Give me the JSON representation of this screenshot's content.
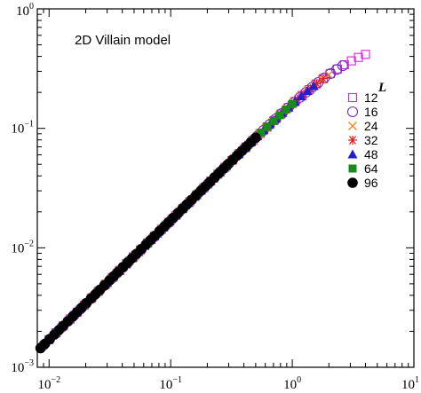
{
  "chart_data": {
    "type": "scatter",
    "title": "2D Villain model",
    "xlabel": "",
    "ylabel": "",
    "xscale": "log",
    "yscale": "log",
    "xlim": [
      0.008,
      10
    ],
    "ylim": [
      0.001,
      1
    ],
    "grid": false,
    "legend_position": "right",
    "legend_title": "L",
    "x_ticks": [
      {
        "mantissa": "10",
        "exp": "−2",
        "value": 0.01
      },
      {
        "mantissa": "10",
        "exp": "−1",
        "value": 0.1
      },
      {
        "mantissa": "10",
        "exp": "0",
        "value": 1
      },
      {
        "mantissa": "10",
        "exp": "1",
        "value": 10
      }
    ],
    "y_ticks": [
      {
        "mantissa": "10",
        "exp": "−3",
        "value": 0.001
      },
      {
        "mantissa": "10",
        "exp": "−2",
        "value": 0.01
      },
      {
        "mantissa": "10",
        "exp": "−1",
        "value": 0.1
      },
      {
        "mantissa": "10",
        "exp": "0",
        "value": 1
      }
    ],
    "curve": {
      "a": 0.17,
      "c": 0.56,
      "k": 1.8
    },
    "series": [
      {
        "name": "12",
        "marker": "square-open",
        "color": "#e020e0",
        "x_min": 0.01,
        "x_max": 4.0,
        "n": 46
      },
      {
        "name": "16",
        "marker": "circle-open",
        "color": "#6a2fc0",
        "x_min": 0.009,
        "x_max": 2.6,
        "n": 50
      },
      {
        "name": "24",
        "marker": "x",
        "color": "#f08020",
        "x_min": 0.02,
        "x_max": 2.0,
        "n": 36
      },
      {
        "name": "32",
        "marker": "asterisk",
        "color": "#e02020",
        "x_min": 0.015,
        "x_max": 1.8,
        "n": 40
      },
      {
        "name": "48",
        "marker": "triangle-filled",
        "color": "#2020d0",
        "x_min": 0.03,
        "x_max": 1.5,
        "n": 34
      },
      {
        "name": "64",
        "marker": "square-filled",
        "color": "#1a8a1a",
        "x_min": 0.02,
        "x_max": 1.0,
        "n": 34
      },
      {
        "name": "96",
        "marker": "circle-filled",
        "color": "#000000",
        "x_min": 0.0085,
        "x_max": 0.5,
        "n": 48
      }
    ]
  }
}
